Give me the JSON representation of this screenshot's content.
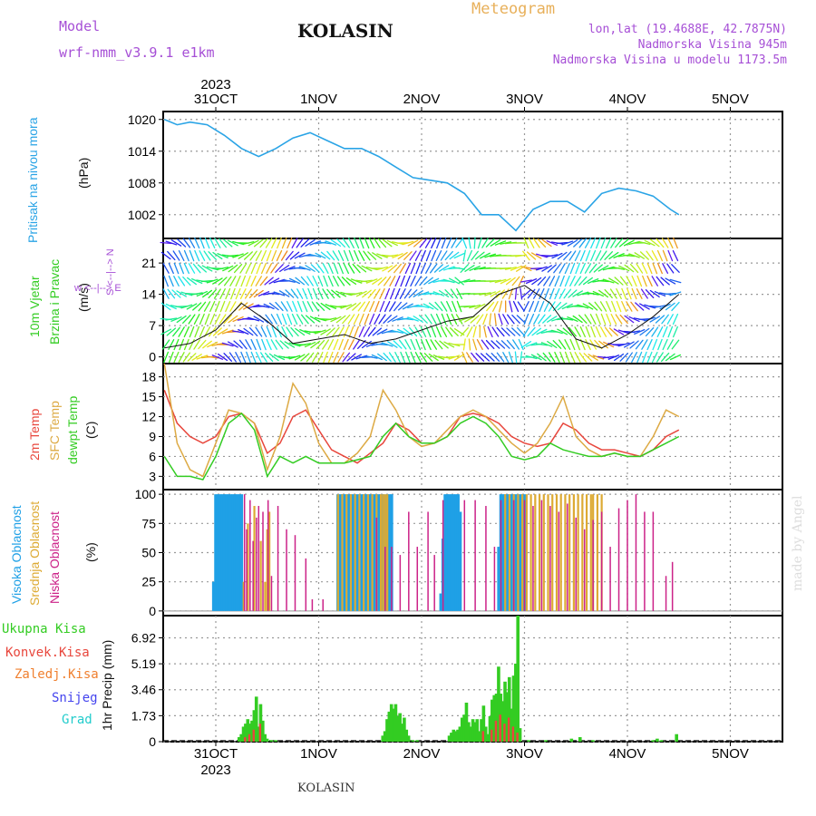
{
  "header": {
    "model_label": "Model",
    "model_name": "wrf-nmm_v3.9.1  e1km",
    "station": "KOLASIN",
    "meteogram": "Meteogram",
    "lonlat": "lon,lat (19.4688E, 42.7875N)",
    "elevation": "Nadmorska Visina 945m",
    "model_elevation": "Nadmorska Visina u modelu 1173.5m",
    "footer_station": "KOLASIN",
    "watermark": "made by Angel"
  },
  "time_axis": {
    "year": "2023",
    "days": [
      "31OCT",
      "1NOV",
      "2NOV",
      "3NOV",
      "4NOV",
      "5NOV"
    ]
  },
  "panel_labels": {
    "pressure": "Pritisak na nivou mora",
    "pressure_unit": "(hPa)",
    "wind_speed": "10m Vjetar",
    "wind_dir": "Brzina i Pravac",
    "wind_unit": "(m/s)",
    "compass": "w <--|--> E",
    "compass2": "S <--|--> N",
    "temp_2m": "2m Temp",
    "temp_sfc": "SFC Temp",
    "temp_dew": "dewpt Temp",
    "temp_unit": "(C)",
    "cloud_high": "Visoka Oblacnost",
    "cloud_mid": "Srednja Oblacnost",
    "cloud_low": "Niska Oblacnost",
    "cloud_unit": "(%)",
    "precip_unit": "1hr Precip (mm)",
    "precip_legend": [
      "Ukupna Kisa",
      "Konvek.Kisa",
      "Zaledj.Kisa",
      "Snijeg",
      "Grad"
    ]
  },
  "colors": {
    "pressure": "#2aa4e6",
    "temp_2m": "#e8463c",
    "temp_sfc": "#ddaa44",
    "temp_dew": "#33cc22",
    "cloud_high": "#1fa0e6",
    "cloud_mid": "#ddaa33",
    "cloud_low": "#cc2288",
    "rain_total": "#33cc22",
    "rain_conv": "#e8463c",
    "rain_frz": "#f08030",
    "snow": "#4444ee",
    "hail": "#22cccc"
  },
  "chart_data": [
    {
      "type": "line",
      "name": "pressure",
      "ylabel": "(hPa)",
      "yticks": [
        1020,
        1014,
        1008,
        1002
      ],
      "ylim": [
        997.5,
        1021.5
      ],
      "x_hours": [
        0,
        3,
        6,
        10,
        14,
        18,
        22,
        26,
        30,
        34,
        38,
        42,
        46,
        50,
        54,
        58,
        62,
        66,
        70,
        74,
        78,
        82,
        86,
        90,
        94,
        98,
        102,
        106,
        110,
        114,
        118,
        120
      ],
      "values": [
        1020,
        1019,
        1019.5,
        1019,
        1017,
        1014.5,
        1013,
        1014.5,
        1016.5,
        1017.5,
        1016,
        1014.5,
        1014.5,
        1013,
        1011,
        1009,
        1008.5,
        1008,
        1006,
        1002,
        1002,
        999,
        1003,
        1004.5,
        1004.5,
        1002.5,
        1006,
        1007,
        1006.5,
        1005.5,
        1003,
        1002
      ]
    },
    {
      "type": "line",
      "name": "wind_speed",
      "ylabel": "(m/s)",
      "yticks": [
        21,
        14,
        7,
        0
      ],
      "ylim": [
        -1.5,
        26.5
      ],
      "x_hours": [
        0,
        6,
        12,
        18,
        24,
        30,
        36,
        42,
        48,
        54,
        60,
        66,
        72,
        78,
        84,
        90,
        96,
        102,
        108,
        114,
        120
      ],
      "values": [
        2,
        3,
        6,
        12,
        8,
        3,
        4,
        5,
        3,
        4,
        6,
        8,
        9,
        14,
        16,
        12,
        4,
        2,
        5,
        9,
        14
      ]
    },
    {
      "type": "line",
      "ylabel": "(C)",
      "yticks": [
        18,
        15,
        12,
        9,
        6,
        3
      ],
      "ylim": [
        1,
        20
      ],
      "x_hours": [
        0,
        3,
        6,
        9,
        12,
        15,
        18,
        21,
        24,
        27,
        30,
        33,
        36,
        39,
        42,
        45,
        48,
        51,
        54,
        57,
        60,
        63,
        66,
        69,
        72,
        75,
        78,
        81,
        84,
        87,
        90,
        93,
        96,
        99,
        102,
        105,
        108,
        111,
        114,
        117,
        120
      ],
      "series": [
        {
          "name": "2m Temp",
          "values": [
            16,
            11,
            9,
            8,
            9,
            12,
            12.5,
            11,
            6.5,
            8,
            12,
            13,
            10,
            7,
            6,
            5,
            6.5,
            8,
            11,
            10,
            8,
            8,
            9,
            12,
            12.5,
            12,
            11,
            9,
            8,
            7.5,
            8,
            11,
            10,
            8,
            7,
            7,
            6.5,
            6,
            7,
            9,
            10
          ]
        },
        {
          "name": "SFC Temp",
          "values": [
            20,
            8,
            4,
            3,
            8,
            13,
            12.5,
            11,
            4,
            9,
            17,
            14,
            8,
            5,
            5,
            6.5,
            9,
            16,
            13,
            9,
            7.5,
            8,
            10,
            12,
            13,
            12,
            10,
            8,
            6.5,
            8,
            11,
            15,
            9,
            7,
            6,
            6.5,
            6,
            6,
            9,
            13,
            12
          ]
        },
        {
          "name": "dewpt Temp",
          "values": [
            6,
            3,
            3,
            2.5,
            6,
            11,
            12.5,
            10,
            3,
            6,
            5,
            6,
            5,
            5,
            5,
            5.5,
            6,
            9,
            11,
            9,
            8,
            8,
            9,
            11,
            12,
            11,
            9,
            6,
            5.5,
            6,
            8,
            7,
            6.5,
            6,
            6,
            6.5,
            6,
            6,
            7,
            8,
            9
          ]
        }
      ]
    },
    {
      "type": "bar",
      "ylabel": "(%)",
      "yticks": [
        100,
        75,
        50,
        25,
        0
      ],
      "ylim": [
        -4,
        104
      ],
      "series": [
        {
          "name": "Visoka Oblacnost",
          "x_hours": [
            11.5,
            12,
            12.5,
            13,
            13.5,
            14,
            14.5,
            15,
            15.5,
            16,
            16.5,
            17,
            17.5,
            18,
            40.5,
            41,
            41.5,
            42,
            42.5,
            43,
            43.5,
            44,
            44.5,
            45,
            45.5,
            46,
            46.5,
            47,
            47.5,
            48,
            48.5,
            49,
            49.5,
            50,
            50.5,
            51,
            51.5,
            52,
            52.5,
            53,
            64.5,
            65,
            65.5,
            66,
            66.5,
            67,
            67.5,
            68,
            68.5,
            69,
            78,
            78.5,
            79,
            79.5,
            80,
            80.5,
            81,
            81.5,
            82,
            82.5,
            83,
            83.5,
            84
          ],
          "values": [
            25,
            100,
            100,
            100,
            100,
            100,
            100,
            100,
            100,
            100,
            100,
            100,
            100,
            100,
            100,
            100,
            100,
            100,
            100,
            100,
            100,
            100,
            100,
            100,
            100,
            100,
            100,
            100,
            100,
            100,
            100,
            100,
            100,
            100,
            100,
            100,
            40,
            100,
            100,
            100,
            15,
            62,
            100,
            100,
            100,
            100,
            100,
            100,
            100,
            85,
            55,
            100,
            100,
            100,
            100,
            100,
            100,
            100,
            100,
            100,
            100,
            100,
            100
          ]
        },
        {
          "name": "Srednja Oblacnost",
          "x_hours": [
            18.5,
            19.5,
            21,
            22.5,
            23.5,
            24,
            24.5,
            40.5,
            41.5,
            42.5,
            43.5,
            44.5,
            45.5,
            46.5,
            47.5,
            48.5,
            49.5,
            50.5,
            51,
            51.5,
            52,
            79.5,
            80.5,
            81.5,
            82.5,
            83.5,
            84.5,
            85.5,
            86.5,
            87.5,
            88.5,
            89.5,
            90.5,
            91.5,
            92.5,
            93.5,
            94.5,
            95.5,
            96.5,
            97.5,
            98.5,
            99.5,
            100,
            101,
            102
          ],
          "values": [
            25,
            75,
            90,
            60,
            25,
            70,
            85,
            100,
            100,
            100,
            100,
            100,
            100,
            100,
            100,
            100,
            100,
            100,
            100,
            100,
            100,
            100,
            100,
            100,
            100,
            100,
            100,
            100,
            100,
            100,
            100,
            100,
            100,
            100,
            100,
            100,
            100,
            100,
            100,
            100,
            100,
            100,
            100,
            100,
            100
          ]
        },
        {
          "name": "Niska Oblacnost",
          "x_hours": [
            18.7,
            19.2,
            20,
            20.7,
            21.5,
            22,
            23,
            24.2,
            25,
            26.5,
            28.5,
            30.5,
            33,
            34.5,
            37,
            49.5,
            51.5,
            53,
            55,
            57,
            59,
            61.5,
            63,
            65,
            70,
            72.5,
            75,
            77,
            78.5,
            81.5,
            84,
            86,
            88,
            90,
            92,
            94,
            96,
            98,
            100,
            102,
            104,
            106,
            108,
            110,
            112,
            114,
            117,
            118.5
          ],
          "values": [
            100,
            70,
            95,
            60,
            80,
            90,
            85,
            95,
            30,
            90,
            70,
            65,
            45,
            10,
            10,
            80,
            55,
            55,
            48,
            85,
            55,
            85,
            48,
            95,
            95,
            95,
            90,
            55,
            95,
            95,
            95,
            90,
            95,
            90,
            85,
            92,
            80,
            70,
            78,
            85,
            55,
            88,
            95,
            100,
            85,
            85,
            30,
            42
          ]
        }
      ]
    },
    {
      "type": "bar",
      "ylabel": "1hr Precip (mm)",
      "yticks": [
        6.92,
        5.19,
        3.46,
        1.73,
        0
      ],
      "ylim": [
        0,
        8.4
      ],
      "series": [
        {
          "name": "Ukupna Kisa",
          "x_hours": [
            17.5,
            18,
            18.5,
            19,
            19.5,
            20,
            20.5,
            21,
            21.5,
            22,
            22.5,
            23,
            23.5,
            24,
            25,
            26,
            51,
            51.5,
            52,
            52.5,
            53,
            53.5,
            54,
            54.5,
            55,
            55.5,
            56,
            56.5,
            57,
            58,
            59,
            66.5,
            67,
            67.5,
            68,
            68.5,
            69,
            69.5,
            70,
            70.5,
            71,
            71.5,
            72,
            72.5,
            73,
            73.5,
            74,
            74.5,
            75,
            75.5,
            76,
            76.5,
            77,
            77.5,
            78,
            78.5,
            79,
            79.5,
            80,
            80.5,
            81,
            81.5,
            82,
            82.5,
            83,
            85,
            89,
            95,
            97,
            100,
            114,
            115,
            116,
            119.5
          ],
          "values": [
            0.3,
            0.5,
            1.0,
            1.2,
            1.5,
            1.2,
            1.4,
            2.1,
            3.0,
            1.0,
            2.5,
            1.4,
            0.5,
            0.2,
            0.1,
            0.1,
            0.4,
            0.7,
            1.5,
            2.0,
            2.5,
            2.2,
            2.5,
            1.7,
            1.9,
            1.2,
            1.6,
            0.8,
            0.4,
            0.1,
            0.1,
            0.4,
            0.6,
            0.8,
            0.7,
            0.8,
            1.0,
            1.6,
            1.8,
            2.6,
            1.3,
            1.0,
            1.5,
            1.3,
            1.5,
            0.7,
            1.5,
            2.4,
            1.0,
            0.5,
            1.7,
            2.8,
            3.1,
            3.2,
            5.0,
            3.2,
            2.7,
            4.0,
            3.3,
            4.3,
            2.2,
            4.4,
            5.2,
            8.4,
            0.9,
            0.1,
            0.1,
            0.2,
            0.3,
            0.1,
            0.1,
            0.2,
            0.1,
            0.5
          ]
        },
        {
          "name": "Konvek.Kisa",
          "x_hours": [
            19,
            20,
            21,
            22.5,
            74.5,
            76.5,
            77.5,
            78.5,
            79.5,
            80.5,
            81.5,
            82.5
          ],
          "values": [
            0.3,
            0.5,
            0.8,
            1.2,
            0.7,
            0.8,
            1.4,
            1.8,
            1.2,
            1.6,
            1.0,
            0.6
          ]
        }
      ]
    }
  ]
}
